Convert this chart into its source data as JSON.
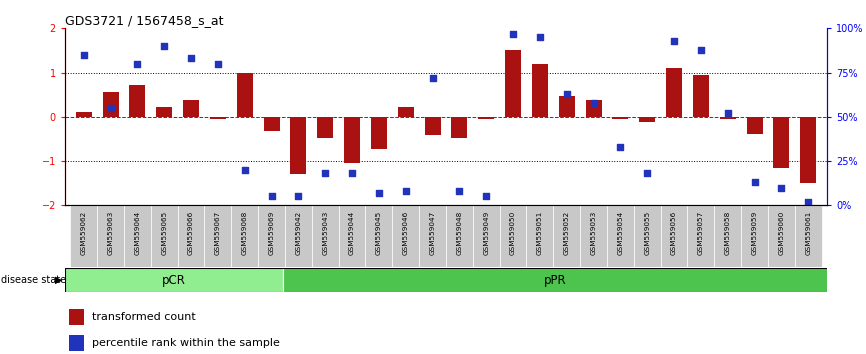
{
  "title": "GDS3721 / 1567458_s_at",
  "samples": [
    "GSM559062",
    "GSM559063",
    "GSM559064",
    "GSM559065",
    "GSM559066",
    "GSM559067",
    "GSM559068",
    "GSM559069",
    "GSM559042",
    "GSM559043",
    "GSM559044",
    "GSM559045",
    "GSM559046",
    "GSM559047",
    "GSM559048",
    "GSM559049",
    "GSM559050",
    "GSM559051",
    "GSM559052",
    "GSM559053",
    "GSM559054",
    "GSM559055",
    "GSM559056",
    "GSM559057",
    "GSM559058",
    "GSM559059",
    "GSM559060",
    "GSM559061"
  ],
  "transformed_count": [
    0.1,
    0.55,
    0.72,
    0.22,
    0.38,
    -0.05,
    1.0,
    -0.32,
    -1.3,
    -0.48,
    -1.05,
    -0.72,
    0.22,
    -0.42,
    -0.48,
    -0.05,
    1.5,
    1.2,
    0.48,
    0.38,
    -0.05,
    -0.12,
    1.1,
    0.95,
    -0.05,
    -0.38,
    -1.15,
    -1.5
  ],
  "percentile_rank": [
    85,
    55,
    80,
    90,
    83,
    80,
    20,
    5,
    5,
    18,
    18,
    7,
    8,
    72,
    8,
    5,
    97,
    95,
    63,
    58,
    33,
    18,
    93,
    88,
    52,
    13,
    10,
    2
  ],
  "pcr_count": 8,
  "ppr_count": 20,
  "ylim": [
    -2,
    2
  ],
  "yticks": [
    -2,
    -1,
    0,
    1,
    2
  ],
  "right_ytick_vals": [
    0,
    25,
    50,
    75,
    100
  ],
  "right_yticklabels": [
    "0%",
    "25%",
    "50%",
    "75%",
    "100%"
  ],
  "bar_color": "#AA1111",
  "dot_color": "#2233BB",
  "pcr_color": "#90EE90",
  "ppr_color": "#4DC44D",
  "tick_bg_color": "#C8C8C8",
  "legend_bar_label": "transformed count",
  "legend_dot_label": "percentile rank within the sample",
  "disease_state_label": "disease state",
  "pcr_label": "pCR",
  "ppr_label": "pPR"
}
